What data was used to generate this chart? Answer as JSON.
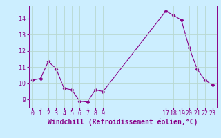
{
  "x": [
    0,
    1,
    2,
    3,
    4,
    5,
    6,
    7,
    8,
    9,
    17,
    18,
    19,
    20,
    21,
    22,
    23
  ],
  "y": [
    10.2,
    10.3,
    11.35,
    10.9,
    9.7,
    9.6,
    8.9,
    8.85,
    9.6,
    9.5,
    14.45,
    14.2,
    13.9,
    12.2,
    10.9,
    10.2,
    9.9
  ],
  "line_color": "#880088",
  "marker_color": "#880088",
  "bg_color": "#cceeff",
  "grid_color": "#aaddcc",
  "xlabel": "Windchill (Refroidissement éolien,°C)",
  "xlim": [
    -0.5,
    23.5
  ],
  "ylim": [
    8.5,
    14.8
  ],
  "yticks": [
    9,
    10,
    11,
    12,
    13,
    14
  ],
  "xticks": [
    0,
    1,
    2,
    3,
    4,
    5,
    6,
    7,
    8,
    9,
    17,
    18,
    19,
    20,
    21,
    22,
    23
  ],
  "font_color": "#880088",
  "tick_fontsize": 6,
  "xlabel_fontsize": 7
}
